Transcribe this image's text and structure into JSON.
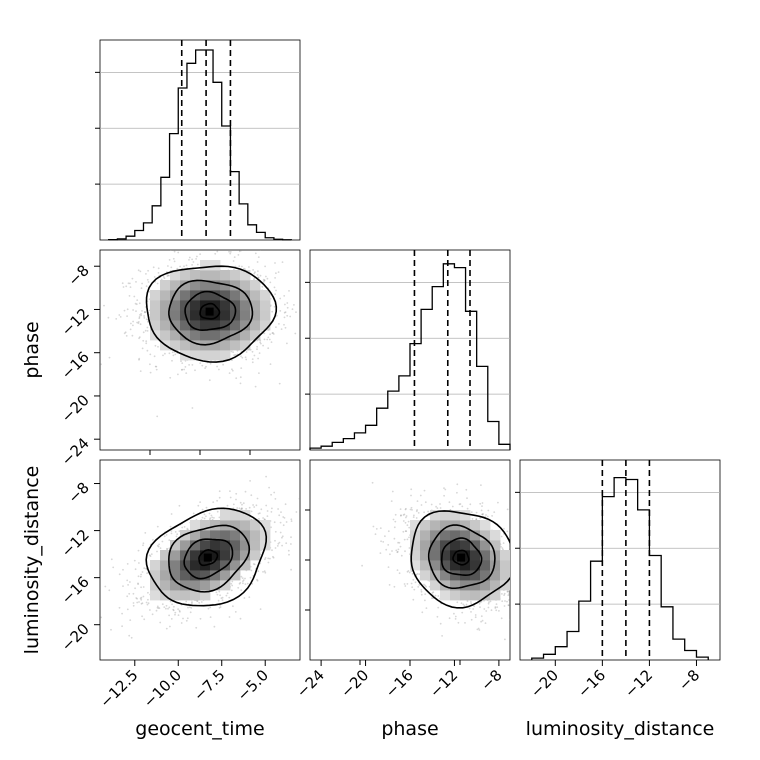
{
  "chart_data": {
    "type": "corner",
    "parameters": [
      "geocent_time",
      "phase",
      "luminosity_distance"
    ],
    "grid": true,
    "quantile_lines": "dashed",
    "panels": [
      {
        "type": "histogram",
        "parameter": "geocent_time",
        "xlim": [
          -14.5,
          -3.0
        ],
        "bin_edges": [
          -14.0,
          -13.5,
          -13.0,
          -12.5,
          -12.0,
          -11.5,
          -11.0,
          -10.5,
          -10.0,
          -9.5,
          -9.0,
          -8.5,
          -8.0,
          -7.5,
          -7.0,
          -6.5,
          -6.0,
          -5.5,
          -5.0,
          -4.5,
          -4.0,
          -3.5
        ],
        "counts": [
          0.002,
          0.006,
          0.02,
          0.05,
          0.09,
          0.18,
          0.33,
          0.56,
          0.8,
          0.93,
          1.0,
          1.0,
          0.83,
          0.6,
          0.36,
          0.19,
          0.08,
          0.04,
          0.012,
          0.004,
          0.001
        ],
        "quantiles": [
          -9.8,
          -8.4,
          -7.0
        ]
      },
      {
        "type": "histogram",
        "parameter": "phase",
        "xlim": [
          -25.0,
          -7.0
        ],
        "bin_edges": [
          -25.0,
          -24.0,
          -23.0,
          -22.0,
          -21.0,
          -20.0,
          -19.0,
          -18.0,
          -17.0,
          -16.0,
          -15.0,
          -14.0,
          -13.0,
          -12.0,
          -11.0,
          -10.0,
          -9.0,
          -8.0,
          -7.0
        ],
        "counts": [
          0.01,
          0.02,
          0.04,
          0.06,
          0.09,
          0.13,
          0.22,
          0.31,
          0.39,
          0.56,
          0.74,
          0.86,
          0.98,
          0.96,
          0.73,
          0.44,
          0.15,
          0.03
        ],
        "quantiles": [
          -15.6,
          -12.6,
          -10.6
        ]
      },
      {
        "type": "histogram",
        "parameter": "luminosity_distance",
        "xlim": [
          -23.0,
          -6.0
        ],
        "bin_edges": [
          -22.0,
          -21.0,
          -20.0,
          -19.0,
          -18.0,
          -17.0,
          -16.0,
          -15.0,
          -14.0,
          -13.0,
          -12.0,
          -11.0,
          -10.0,
          -9.0,
          -8.0,
          -7.0
        ],
        "counts": [
          0.01,
          0.03,
          0.07,
          0.15,
          0.31,
          0.52,
          0.86,
          0.96,
          0.95,
          0.79,
          0.55,
          0.28,
          0.11,
          0.05,
          0.015
        ],
        "quantiles": [
          -16.0,
          -14.0,
          -12.0
        ]
      },
      {
        "type": "scatter_density",
        "x_param": "geocent_time",
        "y_param": "phase",
        "xlim": [
          -14.5,
          -3.0
        ],
        "ylim": [
          -25.0,
          -6.5
        ],
        "center": [
          -8.2,
          -12.2
        ],
        "contour_radii": [
          [
            0.55,
            0.7
          ],
          [
            1.45,
            1.75
          ],
          [
            2.4,
            2.9
          ],
          [
            3.7,
            4.4
          ]
        ],
        "correlation": 0.0
      },
      {
        "type": "scatter_density",
        "x_param": "geocent_time",
        "y_param": "luminosity_distance",
        "xlim": [
          -14.5,
          -3.0
        ],
        "ylim": [
          -23.0,
          -6.0
        ],
        "center": [
          -8.3,
          -14.3
        ],
        "contour_radii": [
          [
            0.55,
            0.6
          ],
          [
            1.45,
            1.55
          ],
          [
            2.4,
            2.6
          ],
          [
            3.5,
            3.9
          ]
        ],
        "correlation": 0.5
      },
      {
        "type": "scatter_density",
        "x_param": "phase",
        "y_param": "luminosity_distance",
        "xlim": [
          -25.0,
          -7.0
        ],
        "ylim": [
          -23.0,
          -6.0
        ],
        "center": [
          -11.4,
          -14.3
        ],
        "contour_radii": [
          [
            0.7,
            0.6
          ],
          [
            1.8,
            1.55
          ],
          [
            3.0,
            2.6
          ],
          [
            4.7,
            4.0
          ]
        ],
        "correlation": -0.3
      }
    ],
    "tick_labels": {
      "geocent_time_x": [
        "−12.5",
        "−10.0",
        "−7.5",
        "−5.0"
      ],
      "phase_x": [
        "−24",
        "−20",
        "−16",
        "−12",
        "−8"
      ],
      "luminosity_distance_x": [
        "−20",
        "−16",
        "−12",
        "−8"
      ],
      "phase_y": [
        "−8",
        "−12",
        "−16",
        "−20",
        "−24"
      ],
      "luminosity_distance_y": [
        "−8",
        "−12",
        "−16",
        "−20"
      ]
    },
    "axis_labels": {
      "x": [
        "geocent_time",
        "phase",
        "luminosity_distance"
      ],
      "y": [
        "phase",
        "luminosity_distance"
      ]
    }
  }
}
